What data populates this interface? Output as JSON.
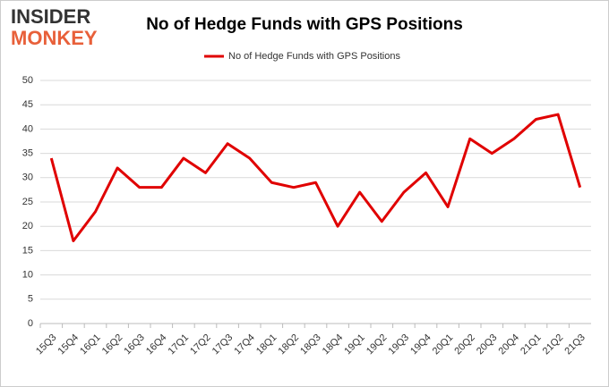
{
  "logo": [
    "INSIDER",
    "MONKEY"
  ],
  "chart_data": {
    "type": "line",
    "title": "No of Hedge Funds with GPS Positions",
    "categories": [
      "15Q3",
      "15Q4",
      "16Q1",
      "16Q2",
      "16Q3",
      "16Q4",
      "17Q1",
      "17Q2",
      "17Q3",
      "17Q4",
      "18Q1",
      "18Q2",
      "18Q3",
      "18Q4",
      "19Q1",
      "19Q2",
      "19Q3",
      "19Q4",
      "20Q1",
      "20Q2",
      "20Q3",
      "20Q4",
      "21Q1",
      "21Q2",
      "21Q3"
    ],
    "series": [
      {
        "name": "No of Hedge Funds with GPS Positions",
        "color": "#e00000",
        "values": [
          34,
          17,
          23,
          32,
          28,
          28,
          34,
          31,
          37,
          34,
          29,
          28,
          29,
          20,
          27,
          21,
          27,
          31,
          24,
          38,
          35,
          38,
          42,
          43,
          28
        ]
      }
    ],
    "ylim": [
      0,
      50
    ],
    "yticks": [
      0,
      5,
      10,
      15,
      20,
      25,
      30,
      35,
      40,
      45,
      50
    ],
    "grid": true,
    "legend": "top"
  }
}
